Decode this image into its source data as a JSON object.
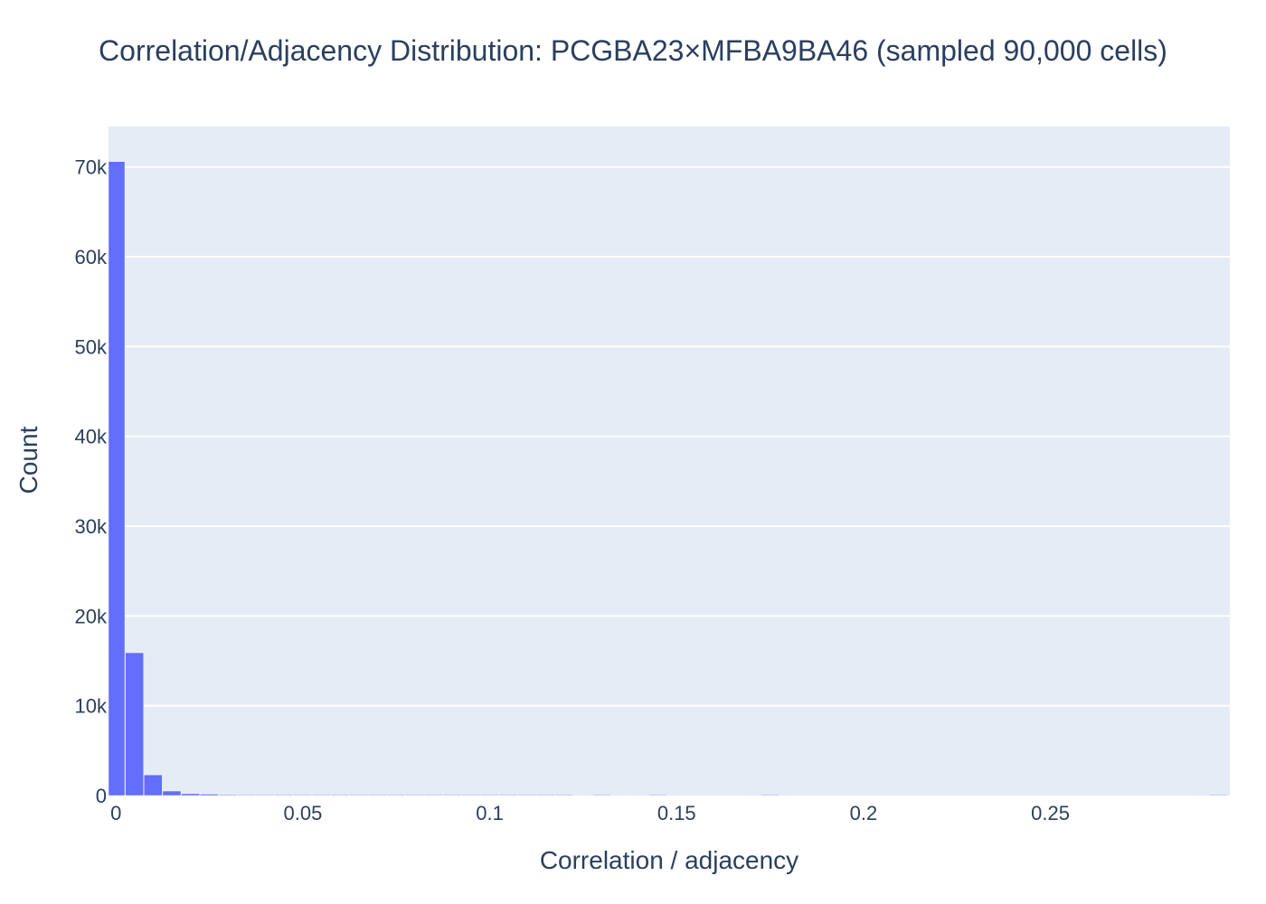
{
  "chart_data": {
    "type": "bar",
    "title": "Correlation/Adjacency Distribution: PCGBA23×MFBA9BA46 (sampled 90,000 cells)",
    "xlabel": "Correlation / adjacency",
    "ylabel": "Count",
    "xlim": [
      -0.002,
      0.298
    ],
    "ylim": [
      0,
      74500
    ],
    "bin_width": 0.005,
    "bins": [
      {
        "x0": -0.0025,
        "x1": 0.0025,
        "count": 70600
      },
      {
        "x0": 0.0025,
        "x1": 0.0075,
        "count": 15900
      },
      {
        "x0": 0.0075,
        "x1": 0.0125,
        "count": 2300
      },
      {
        "x0": 0.0125,
        "x1": 0.0175,
        "count": 500
      },
      {
        "x0": 0.0175,
        "x1": 0.0225,
        "count": 200
      },
      {
        "x0": 0.0225,
        "x1": 0.0275,
        "count": 150
      },
      {
        "x0": 0.0275,
        "x1": 0.0325,
        "count": 90
      },
      {
        "x0": 0.0325,
        "x1": 0.0375,
        "count": 70
      },
      {
        "x0": 0.0375,
        "x1": 0.0425,
        "count": 50
      },
      {
        "x0": 0.0425,
        "x1": 0.0475,
        "count": 40
      },
      {
        "x0": 0.0475,
        "x1": 0.0525,
        "count": 30
      },
      {
        "x0": 0.0525,
        "x1": 0.0575,
        "count": 25
      },
      {
        "x0": 0.0575,
        "x1": 0.0625,
        "count": 20
      },
      {
        "x0": 0.0625,
        "x1": 0.0675,
        "count": 15
      },
      {
        "x0": 0.0675,
        "x1": 0.0725,
        "count": 12
      },
      {
        "x0": 0.0725,
        "x1": 0.0775,
        "count": 10
      },
      {
        "x0": 0.0775,
        "x1": 0.0825,
        "count": 8
      },
      {
        "x0": 0.0825,
        "x1": 0.0875,
        "count": 6
      },
      {
        "x0": 0.0875,
        "x1": 0.0925,
        "count": 5
      },
      {
        "x0": 0.0925,
        "x1": 0.0975,
        "count": 4
      },
      {
        "x0": 0.0975,
        "x1": 0.1025,
        "count": 3
      },
      {
        "x0": 0.1025,
        "x1": 0.1075,
        "count": 3
      },
      {
        "x0": 0.1075,
        "x1": 0.1125,
        "count": 2
      },
      {
        "x0": 0.1125,
        "x1": 0.1175,
        "count": 2
      },
      {
        "x0": 0.1175,
        "x1": 0.1225,
        "count": 1
      },
      {
        "x0": 0.1275,
        "x1": 0.1325,
        "count": 1
      },
      {
        "x0": 0.1425,
        "x1": 0.1475,
        "count": 1
      },
      {
        "x0": 0.1725,
        "x1": 0.1775,
        "count": 1
      },
      {
        "x0": 0.2925,
        "x1": 0.2975,
        "count": 1
      }
    ],
    "x_ticks": [
      {
        "value": 0,
        "label": "0"
      },
      {
        "value": 0.05,
        "label": "0.05"
      },
      {
        "value": 0.1,
        "label": "0.1"
      },
      {
        "value": 0.15,
        "label": "0.15"
      },
      {
        "value": 0.2,
        "label": "0.2"
      },
      {
        "value": 0.25,
        "label": "0.25"
      }
    ],
    "y_ticks": [
      {
        "value": 0,
        "label": "0"
      },
      {
        "value": 10000,
        "label": "10k"
      },
      {
        "value": 20000,
        "label": "20k"
      },
      {
        "value": 30000,
        "label": "30k"
      },
      {
        "value": 40000,
        "label": "40k"
      },
      {
        "value": 50000,
        "label": "50k"
      },
      {
        "value": 60000,
        "label": "60k"
      },
      {
        "value": 70000,
        "label": "70k"
      }
    ],
    "grid": true,
    "legend": "none",
    "colors": {
      "bar": "#636efa",
      "plot_bg": "#e5ecf6",
      "grid": "#ffffff",
      "text": "#2a3f5f"
    }
  }
}
